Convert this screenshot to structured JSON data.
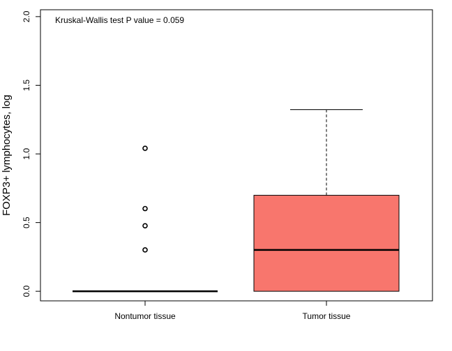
{
  "chart_data": {
    "type": "box",
    "title": "",
    "xlabel": "",
    "ylabel": "FOXP3+ lymphocytes, log",
    "ylim": [
      -0.07,
      2.05
    ],
    "yticks": [
      0.0,
      0.5,
      1.0,
      1.5,
      2.0
    ],
    "ytick_labels": [
      "0.0",
      "0.5",
      "1.0",
      "1.5",
      "2.0"
    ],
    "annotation": "Kruskal-Wallis test P value =  0.059",
    "categories": [
      "Nontumor tissue",
      "Tumor tissue"
    ],
    "boxes": [
      {
        "name": "Nontumor tissue",
        "min": 0.0,
        "q1": 0.0,
        "median": 0.0,
        "q3": 0.0,
        "max": 0.0,
        "outliers": [
          0.301,
          0.477,
          0.602,
          1.041
        ],
        "fill": "#ffffff"
      },
      {
        "name": "Tumor tissue",
        "min": 0.0,
        "q1": 0.0,
        "median": 0.301,
        "q3": 0.699,
        "max": 1.322,
        "outliers": [],
        "fill": "#F8766D"
      }
    ],
    "grid": false,
    "legend": "none"
  }
}
